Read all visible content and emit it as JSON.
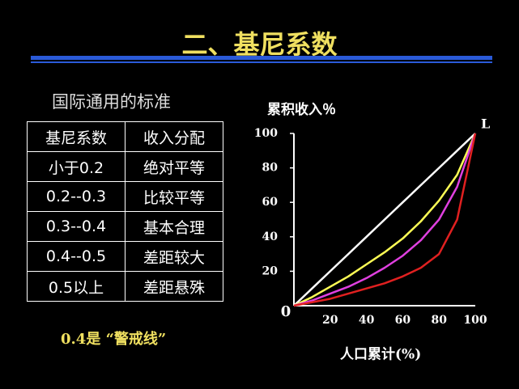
{
  "title": "二、基尼系数",
  "table": {
    "caption": "国际通用的标准",
    "header": [
      "基尼系数",
      "收入分配"
    ],
    "rows": [
      [
        "小于0.2",
        "绝对平等"
      ],
      [
        "0.2--0.3",
        "比较平等"
      ],
      [
        "0.3--0.4",
        "基本合理"
      ],
      [
        "0.4--0.5",
        "差距较大"
      ],
      [
        "0.5以上",
        "差距悬殊"
      ]
    ]
  },
  "note": "0.4是 “警戒线”",
  "chart_data": {
    "type": "line",
    "y_label": "累积收入％",
    "x_label": "人口累计(%)",
    "annotation": "L",
    "x": [
      0,
      10,
      20,
      30,
      40,
      50,
      60,
      70,
      80,
      90,
      100
    ],
    "series": [
      {
        "color": "#ffffff",
        "values": [
          0,
          10,
          20,
          30,
          40,
          50,
          60,
          70,
          80,
          90,
          100
        ]
      },
      {
        "color": "#ffff55",
        "values": [
          0,
          5,
          11,
          17,
          24,
          31,
          39,
          49,
          61,
          76,
          100
        ]
      },
      {
        "color": "#e040e0",
        "values": [
          0,
          3,
          7,
          11,
          16,
          22,
          29,
          38,
          50,
          69,
          100
        ]
      },
      {
        "color": "#e02020",
        "values": [
          0,
          2,
          4,
          7,
          10,
          13,
          17,
          22,
          30,
          50,
          100
        ]
      }
    ],
    "xlim": [
      0,
      100
    ],
    "ylim": [
      0,
      100
    ],
    "xticks": [
      0,
      20,
      40,
      60,
      80,
      100
    ],
    "yticks": [
      20,
      40,
      60,
      80,
      100
    ],
    "grid": false
  }
}
